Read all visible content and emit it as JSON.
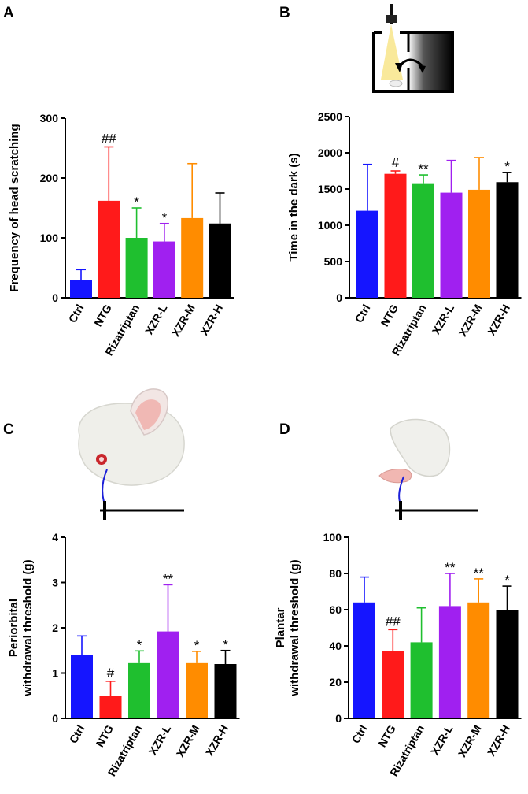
{
  "chart_data": [
    {
      "panel": "A",
      "type": "bar",
      "ylabel": "Frequency of head scratching",
      "ylim": [
        0,
        300
      ],
      "yticks": [
        0,
        100,
        200,
        300
      ],
      "categories": [
        "Ctrl",
        "NTG",
        "Rizatriptan",
        "XZR-L",
        "XZR-M",
        "XZR-H"
      ],
      "values": [
        30,
        162,
        100,
        94,
        133,
        124
      ],
      "errors": [
        17,
        90,
        50,
        30,
        91,
        51
      ],
      "annotations": [
        "",
        "##",
        "*",
        "*",
        "",
        ""
      ],
      "colors": [
        "#1515ff",
        "#ff1a1a",
        "#1fbf2f",
        "#a020f0",
        "#ff8c00",
        "#000000"
      ]
    },
    {
      "panel": "B",
      "type": "bar",
      "ylabel": "Time in the dark (s)",
      "ylim": [
        0,
        2500
      ],
      "yticks": [
        0,
        500,
        1000,
        1500,
        2000,
        2500
      ],
      "categories": [
        "Ctrl",
        "NTG",
        "Rizatriptan",
        "XZR-L",
        "XZR-M",
        "XZR-H"
      ],
      "values": [
        1200,
        1710,
        1580,
        1450,
        1490,
        1595
      ],
      "errors": [
        640,
        40,
        115,
        445,
        445,
        135
      ],
      "annotations": [
        "",
        "#",
        "**",
        "",
        "",
        "*"
      ],
      "colors": [
        "#1515ff",
        "#ff1a1a",
        "#1fbf2f",
        "#a020f0",
        "#ff8c00",
        "#000000"
      ]
    },
    {
      "panel": "C",
      "type": "bar",
      "ylabel_lines": [
        "Periorbital",
        "withdrawal threshold (g)"
      ],
      "ylim": [
        0,
        4
      ],
      "yticks": [
        0,
        1,
        2,
        3,
        4
      ],
      "categories": [
        "Ctrl",
        "NTG",
        "Rizatriptan",
        "XZR-L",
        "XZR-M",
        "XZR-H"
      ],
      "values": [
        1.4,
        0.5,
        1.22,
        1.92,
        1.22,
        1.2
      ],
      "errors": [
        0.42,
        0.32,
        0.27,
        1.03,
        0.26,
        0.3
      ],
      "annotations": [
        "",
        "#",
        "*",
        "**",
        "*",
        "*"
      ],
      "colors": [
        "#1515ff",
        "#ff1a1a",
        "#1fbf2f",
        "#a020f0",
        "#ff8c00",
        "#000000"
      ]
    },
    {
      "panel": "D",
      "type": "bar",
      "ylabel_lines": [
        "Plantar",
        "withdrawal threshold (g)"
      ],
      "ylim": [
        0,
        100
      ],
      "yticks": [
        0,
        20,
        40,
        60,
        80,
        100
      ],
      "categories": [
        "Ctrl",
        "NTG",
        "Rizatriptan",
        "XZR-L",
        "XZR-M",
        "XZR-H"
      ],
      "values": [
        64,
        37,
        42,
        62,
        64,
        60
      ],
      "errors": [
        14,
        12,
        19,
        18,
        13,
        13
      ],
      "annotations": [
        "",
        "##",
        "",
        "**",
        "**",
        "*"
      ],
      "colors": [
        "#1515ff",
        "#ff1a1a",
        "#1fbf2f",
        "#a020f0",
        "#ff8c00",
        "#000000"
      ]
    }
  ],
  "illustrations": {
    "B": "light-dark-box-icon",
    "C": "rat-head-von-frey-icon",
    "D": "rat-paw-von-frey-icon"
  }
}
